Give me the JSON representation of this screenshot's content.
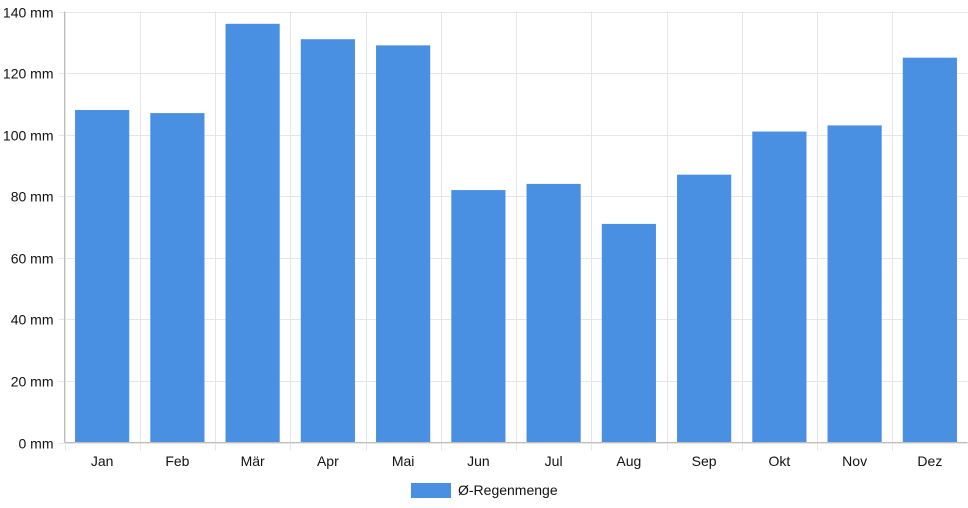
{
  "chart_data": {
    "type": "bar",
    "categories": [
      "Jan",
      "Feb",
      "Mär",
      "Apr",
      "Mai",
      "Jun",
      "Jul",
      "Aug",
      "Sep",
      "Okt",
      "Nov",
      "Dez"
    ],
    "series": [
      {
        "name": "Ø-Regenmenge",
        "values": [
          108,
          107,
          136,
          131,
          129,
          82,
          84,
          71,
          87,
          101,
          103,
          125
        ]
      }
    ],
    "ylim": [
      0,
      140
    ],
    "yticks": [
      0,
      20,
      40,
      60,
      80,
      100,
      120,
      140
    ],
    "ytick_labels": [
      "0 mm",
      "20 mm",
      "40 mm",
      "60 mm",
      "80 mm",
      "100 mm",
      "120 mm",
      "140 mm"
    ],
    "grid": true,
    "legend_position": "bottom",
    "colors": {
      "bar": "#4a90e2",
      "grid": "#e6e6e6",
      "axis": "#bdbdbd"
    }
  }
}
